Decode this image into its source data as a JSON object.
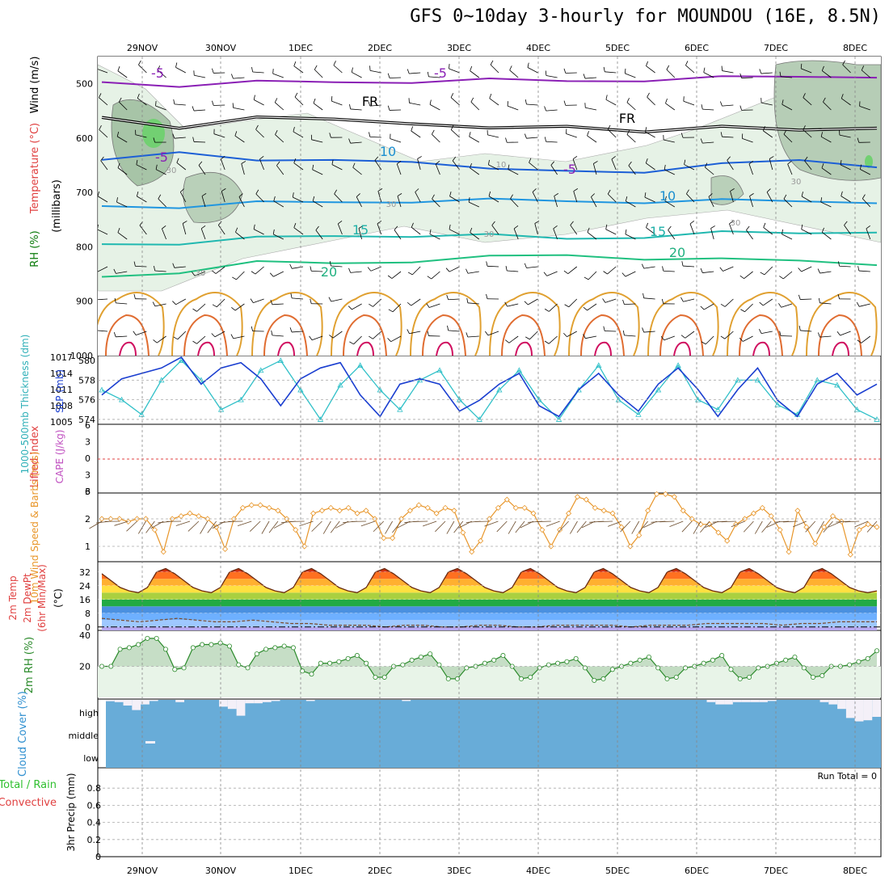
{
  "title": "GFS 0~10day 3-hourly for MOUNDOU (16E, 8.5N)",
  "chart_data": [
    {
      "id": "upper_air",
      "type": "heatmap",
      "ylabel_parts": [
        "RH (%)",
        "Temperature (°C)",
        "Wind (m/s)",
        "(millibars)"
      ],
      "y_ticks": [
        500,
        600,
        700,
        800,
        900,
        1000
      ],
      "ylim": [
        450,
        1000
      ],
      "contour_labels": [
        "-5",
        "-5",
        "FR",
        "FR",
        "-5",
        "-5",
        "10",
        "10",
        "15",
        "15",
        "20",
        "20",
        "10",
        "30",
        "30",
        "30",
        "30",
        "30",
        "30"
      ],
      "isotherms": [
        {
          "label": "-5",
          "color": "#8a1fb5",
          "values": [
            497,
            502,
            498,
            497,
            495,
            494,
            495,
            492,
            490,
            487,
            485
          ]
        },
        {
          "label": "FR",
          "color": "#000000",
          "values": [
            562,
            578,
            565,
            565,
            570,
            585,
            578,
            585,
            582,
            585,
            578
          ]
        },
        {
          "label": "5",
          "color": "#1c5fd6",
          "values": [
            640,
            622,
            645,
            640,
            640,
            660,
            660,
            660,
            650,
            640,
            650
          ]
        },
        {
          "label": "10",
          "color": "#2096e0",
          "values": [
            725,
            725,
            720,
            718,
            715,
            715,
            716,
            716,
            716,
            716,
            716
          ]
        },
        {
          "label": "15",
          "color": "#20b8b0",
          "values": [
            795,
            792,
            785,
            780,
            778,
            780,
            785,
            780,
            775,
            775,
            770
          ]
        },
        {
          "label": "20",
          "color": "#20c080",
          "values": [
            855,
            845,
            830,
            830,
            825,
            820,
            815,
            820,
            825,
            825,
            830
          ]
        }
      ]
    },
    {
      "id": "thickness_slp",
      "type": "line",
      "ylabel_left": "1000-500mb Thickness (dm)",
      "ylabel_right": "SLP (mb)",
      "y_ticks_left": [
        574,
        576,
        578,
        580
      ],
      "y_ticks_right": [
        1005,
        1008,
        1011,
        1014,
        1017
      ],
      "series": [
        {
          "name": "1000-500mb Thickness (dm)",
          "color": "#30c0c8",
          "values": [
            577,
            576,
            574.5,
            578,
            580,
            578,
            575,
            576,
            579,
            580,
            577,
            574,
            577.5,
            579.5,
            577,
            575,
            578,
            579,
            576,
            574,
            577,
            579,
            576,
            574,
            577,
            579.5,
            576,
            574.5,
            577,
            579.5,
            576,
            575,
            578,
            578,
            575.5,
            574.5,
            578,
            577.5,
            575,
            574
          ]
        },
        {
          "name": "SLP (mb)",
          "color": "#1a3ed0",
          "values": [
            1010,
            1013,
            1014,
            1015,
            1017,
            1012,
            1015,
            1016,
            1013,
            1008,
            1013,
            1015,
            1016,
            1010,
            1006,
            1012,
            1013,
            1012,
            1007,
            1009,
            1012,
            1014,
            1008,
            1006,
            1011,
            1014,
            1010,
            1007,
            1012,
            1015,
            1011,
            1006,
            1011,
            1015,
            1009,
            1006,
            1012,
            1014,
            1010,
            1012
          ]
        }
      ]
    },
    {
      "id": "cape_li",
      "type": "line",
      "ylabel_left": "Lifted Index",
      "ylabel_right": "CAPE (J/kg)",
      "y_ticks": [
        "6",
        "3",
        "0",
        "3",
        "6"
      ],
      "ylim": [
        6,
        -6
      ],
      "series": []
    },
    {
      "id": "wind10m",
      "type": "line",
      "ylabel": "10m Wind Speed & Barbs (m/s)",
      "y_ticks": [
        1,
        2,
        3
      ],
      "ylim": [
        0.5,
        3
      ],
      "series": [
        {
          "name": "10m Wind Speed",
          "color": "#e8962a",
          "values": [
            2.0,
            2.0,
            2.0,
            1.9,
            2.0,
            2.0,
            1.6,
            0.8,
            2.0,
            2.1,
            2.2,
            2.1,
            2.0,
            1.7,
            0.9,
            2.0,
            2.4,
            2.5,
            2.5,
            2.4,
            2.3,
            2.0,
            1.6,
            1.0,
            2.2,
            2.3,
            2.4,
            2.3,
            2.4,
            2.2,
            2.3,
            2.0,
            1.3,
            1.3,
            2.0,
            2.3,
            2.5,
            2.4,
            2.2,
            2.4,
            2.3,
            1.5,
            0.8,
            1.2,
            2.0,
            2.4,
            2.7,
            2.4,
            2.4,
            2.2,
            1.6,
            1.0,
            1.6,
            2.2,
            2.8,
            2.7,
            2.4,
            2.3,
            2.2,
            1.7,
            1.0,
            1.4,
            2.3,
            2.9,
            2.9,
            2.8,
            2.3,
            2.0,
            1.8,
            1.8,
            1.5,
            1.2,
            1.8,
            2.0,
            2.2,
            2.4,
            2.1,
            1.6,
            0.8,
            2.3,
            1.7,
            1.1,
            1.7,
            2.1,
            1.9,
            0.7,
            1.6,
            1.8,
            1.7
          ]
        }
      ]
    },
    {
      "id": "temp2m",
      "type": "area",
      "ylabel_parts": [
        "2m Temp",
        "2m DewPt",
        "(6hr Min/Max)",
        "(°C)"
      ],
      "y_ticks": [
        0,
        8,
        16,
        24,
        32
      ],
      "ylim": [
        -2,
        38
      ],
      "series": [
        {
          "name": "2m Temp",
          "values": [
            31,
            27,
            23,
            21,
            20,
            23,
            32,
            34,
            31,
            27,
            23,
            21,
            20,
            23,
            32,
            34,
            31,
            27,
            23,
            21,
            20,
            23,
            32,
            34,
            31,
            27,
            23,
            21,
            20,
            23,
            32,
            34,
            31,
            27,
            23,
            21,
            20,
            23,
            32,
            34,
            31,
            27,
            23,
            21,
            20,
            23,
            32,
            34,
            31,
            27,
            23,
            21,
            20,
            23,
            32,
            34,
            31,
            27,
            23,
            21,
            20,
            23,
            32,
            34,
            31,
            27,
            23,
            21,
            20,
            23,
            32,
            34,
            31,
            27,
            23,
            21,
            20,
            23,
            32,
            34,
            31,
            27,
            23,
            21,
            20,
            21
          ]
        },
        {
          "name": "2m DewPt",
          "values": [
            5,
            4,
            3,
            4,
            5,
            4,
            3,
            3,
            4,
            3,
            2,
            2,
            1,
            1,
            1,
            0,
            1,
            1,
            0,
            0,
            1,
            1,
            0,
            0,
            1,
            1,
            1,
            1,
            0,
            1,
            1,
            1,
            2,
            2,
            2,
            2,
            1,
            2,
            2,
            3,
            3,
            3
          ]
        }
      ]
    },
    {
      "id": "rh2m",
      "type": "area",
      "ylabel": "2m RH (%)",
      "y_ticks": [
        20,
        40
      ],
      "ylim": [
        0,
        40
      ],
      "series": [
        {
          "name": "2m RH",
          "color": "#2a8a2a",
          "values": [
            20,
            20,
            31,
            32,
            34,
            38,
            38,
            31,
            18,
            19,
            32,
            34,
            34,
            35,
            33,
            21,
            19,
            28,
            31,
            32,
            33,
            32,
            17,
            15,
            22,
            22,
            23,
            25,
            27,
            22,
            13,
            13,
            20,
            21,
            24,
            26,
            28,
            21,
            12,
            12,
            19,
            20,
            22,
            24,
            27,
            20,
            12,
            13,
            19,
            21,
            22,
            23,
            25,
            19,
            11,
            12,
            18,
            20,
            22,
            24,
            26,
            19,
            12,
            13,
            19,
            20,
            22,
            24,
            27,
            18,
            12,
            13,
            19,
            20,
            22,
            24,
            26,
            19,
            13,
            14,
            20,
            20,
            21,
            23,
            25,
            30
          ]
        }
      ]
    },
    {
      "id": "cloud",
      "type": "bar",
      "ylabel": "Cloud Cover (%)",
      "y_ticks": [
        "high",
        "middle",
        "low"
      ],
      "high_cloud_values": [
        6,
        10,
        25,
        45,
        20,
        5,
        0,
        0,
        10,
        0,
        0,
        0,
        0,
        30,
        40,
        70,
        15,
        15,
        10,
        5,
        0,
        0,
        0,
        5,
        0,
        0,
        0,
        0,
        0,
        0,
        0,
        0,
        0,
        0,
        5,
        0,
        0,
        0,
        0,
        0,
        0,
        0,
        0,
        0,
        0,
        0,
        0,
        0,
        0,
        0,
        0,
        0,
        0,
        0,
        0,
        0,
        0,
        0,
        0,
        0,
        0,
        0,
        0,
        0,
        0,
        0,
        0,
        0,
        0,
        10,
        20,
        20,
        10,
        10,
        10,
        10,
        5,
        0,
        0,
        0,
        0,
        0,
        10,
        20,
        40,
        80,
        95,
        90,
        75
      ]
    },
    {
      "id": "precip",
      "type": "bar",
      "ylabel_left": "Total / Rain",
      "ylabel_left2": "Convective",
      "ylabel": "3hr Precip (mm)",
      "y_ticks": [
        0,
        0.2,
        0.4,
        0.6,
        0.8
      ],
      "ylim": [
        0,
        1
      ],
      "run_total_label": "Run Total = 0",
      "values": []
    }
  ],
  "x_axis": {
    "labels": [
      "29NOV",
      "30NOV",
      "1DEC",
      "2DEC",
      "3DEC",
      "4DEC",
      "5DEC",
      "6DEC",
      "7DEC",
      "8DEC"
    ]
  }
}
